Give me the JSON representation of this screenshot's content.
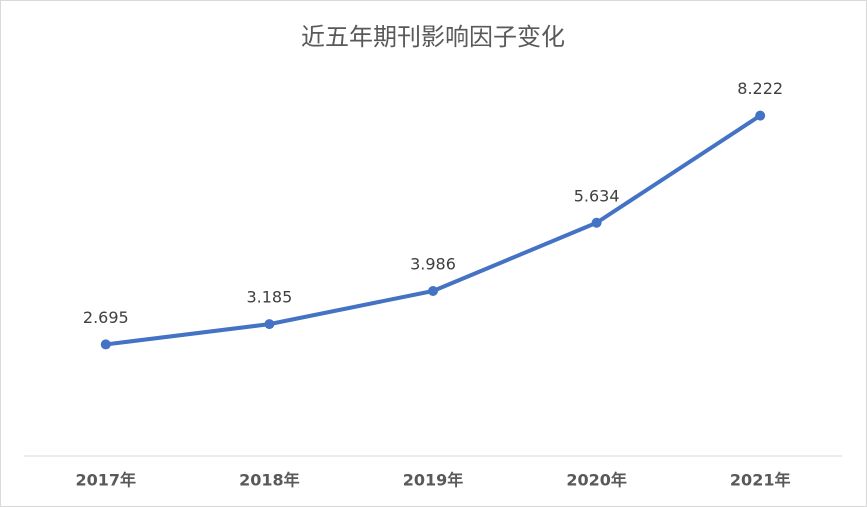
{
  "chart_data": {
    "type": "line",
    "title": "近五年期刊影响因子变化",
    "categories": [
      "2017年",
      "2018年",
      "2019年",
      "2020年",
      "2021年"
    ],
    "values": [
      2.695,
      3.185,
      3.986,
      5.634,
      8.222
    ],
    "color": "#4472c4",
    "ylim": [
      0,
      10
    ]
  }
}
